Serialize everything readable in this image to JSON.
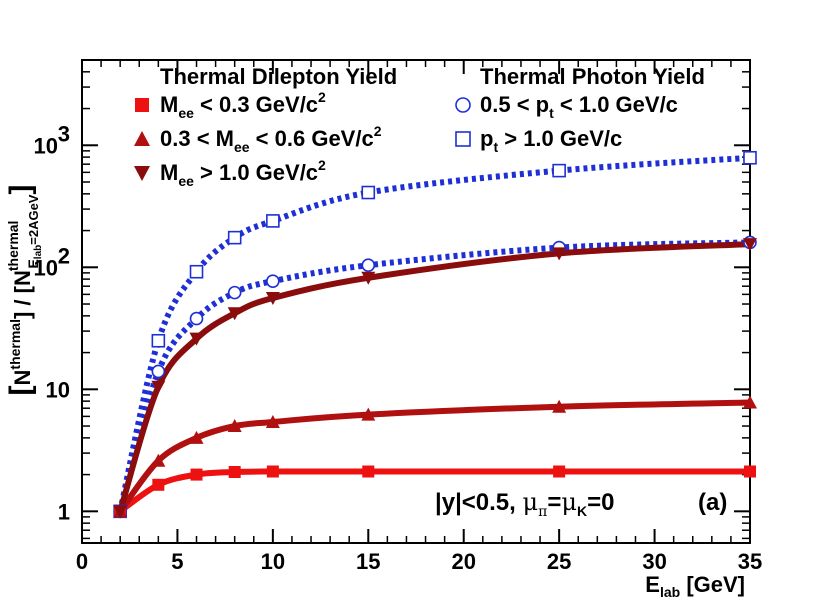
{
  "chart_data": {
    "type": "line",
    "title": "",
    "xlabel": "E_lab [GeV]",
    "xlabel_parts": {
      "main": "E",
      "sub": "lab",
      "unit": " [GeV]"
    },
    "ylabel_parts": {
      "bracket_open": "[",
      "num_main": "N",
      "num_sup": "thermal",
      "mid": "] / [",
      "den_main": "N",
      "den_sup": "thermal",
      "den_sub": "E",
      "den_subsub": "lab",
      "den_sub_tail": "=2AGeV",
      "bracket_close": "]"
    },
    "x_axis": {
      "scale": "linear",
      "range": [
        0,
        35
      ],
      "ticks": [
        0,
        5,
        10,
        15,
        20,
        25,
        30,
        35
      ],
      "tick_labels": [
        "0",
        "5",
        "10",
        "15",
        "20",
        "25",
        "30",
        "35"
      ]
    },
    "y_axis": {
      "scale": "log",
      "range": [
        0.55,
        5000
      ],
      "ticks": [
        1,
        10,
        100,
        1000
      ],
      "tick_labels": {
        "1": "1",
        "10": "10",
        "100_base": "10",
        "100_exp": "2",
        "1000_base": "10",
        "1000_exp": "3"
      }
    },
    "legend_headers": {
      "dilepton": "Thermal Dilepton Yield",
      "photon": "Thermal Photon Yield"
    },
    "x": [
      2,
      4,
      6,
      8,
      10,
      15,
      25,
      35
    ],
    "series": [
      {
        "name": "M_ee < 0.3 GeV/c^2",
        "group": "dilepton",
        "color": "#ee1111",
        "marker": "square",
        "line": "solid",
        "legend": {
          "pre": "",
          "main": "M",
          "sub": "ee",
          "post": " < 0.3 GeV/c",
          "sup": "2"
        },
        "values": [
          1.0,
          1.65,
          2.0,
          2.1,
          2.12,
          2.12,
          2.12,
          2.12
        ]
      },
      {
        "name": "0.3 < M_ee < 0.6 GeV/c^2",
        "group": "dilepton",
        "color": "#b01010",
        "marker": "triangle-up",
        "line": "solid",
        "legend": {
          "pre": "0.3 < ",
          "main": "M",
          "sub": "ee",
          "post": " < 0.6 GeV/c",
          "sup": "2"
        },
        "values": [
          1.0,
          2.6,
          4.0,
          5.0,
          5.4,
          6.2,
          7.2,
          7.8
        ]
      },
      {
        "name": "M_ee > 1.0 GeV/c^2",
        "group": "dilepton",
        "color": "#8a0c0c",
        "marker": "triangle-down",
        "line": "solid",
        "legend": {
          "pre": "",
          "main": "M",
          "sub": "ee",
          "post": " > 1.0 GeV/c",
          "sup": "2"
        },
        "values": [
          1.0,
          10.5,
          26,
          42,
          56,
          82,
          130,
          155
        ]
      },
      {
        "name": "0.5 < p_t < 1.0 GeV/c",
        "group": "photon",
        "color": "#1f2fd6",
        "marker": "open-circle",
        "line": "dotted",
        "legend": {
          "pre": "0.5 < ",
          "main": "p",
          "sub": "t",
          "post": " < 1.0 GeV/c",
          "sup": ""
        },
        "values": [
          1.0,
          14,
          38,
          62,
          77,
          104,
          145,
          160
        ]
      },
      {
        "name": "p_t > 1.0 GeV/c",
        "group": "photon",
        "color": "#1f2fd6",
        "marker": "open-square",
        "line": "dotted",
        "legend": {
          "pre": "",
          "main": "p",
          "sub": "t",
          "post": " > 1.0 GeV/c",
          "sup": ""
        },
        "values": [
          1.0,
          25,
          92,
          175,
          240,
          410,
          620,
          790
        ]
      }
    ],
    "annotation": {
      "y_part": "|y|<0.5,  ",
      "mu": "μ",
      "pi": "π",
      "eq": "=",
      "K": "K",
      "tail": "=0",
      "panel": "(a)"
    },
    "grid": false
  }
}
